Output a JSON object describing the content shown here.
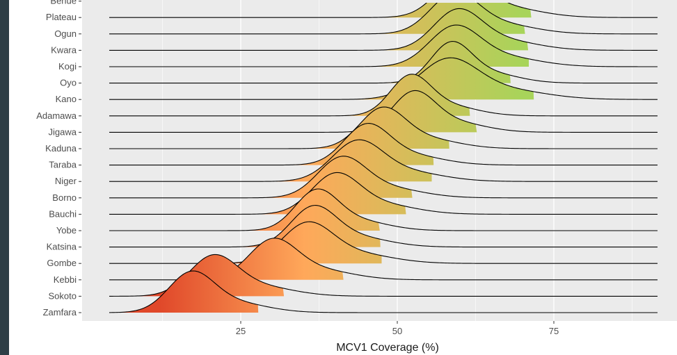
{
  "chart_data": {
    "type": "ridgeline",
    "title": "",
    "xlabel": "MCV1 Coverage (%)",
    "ylabel": "",
    "xlim": [
      4,
      95
    ],
    "x_ticks": [
      25,
      50,
      75
    ],
    "grid": true,
    "legend": "none",
    "colors": {
      "panel_bg": "#ebebeb",
      "grid": "#ffffff",
      "outer_bg": "#2e3e46",
      "low": "#e0482a",
      "mid": "#ffa85a",
      "high": "#a8d45a",
      "line": "#000000"
    },
    "series": [
      {
        "name": "Zamfara",
        "mode": 17,
        "spread": 3.6
      },
      {
        "name": "Sokoto",
        "mode": 20.5,
        "spread": 3.8
      },
      {
        "name": "Kebbi",
        "mode": 30,
        "spread": 3.8
      },
      {
        "name": "Gombe",
        "mode": 35.5,
        "spread": 4.0
      },
      {
        "name": "Katsina",
        "mode": 36.5,
        "spread": 3.6
      },
      {
        "name": "Yobe",
        "mode": 37,
        "spread": 3.4
      },
      {
        "name": "Bauchi",
        "mode": 40,
        "spread": 3.8
      },
      {
        "name": "Borno",
        "mode": 41,
        "spread": 3.8
      },
      {
        "name": "Niger",
        "mode": 43.5,
        "spread": 4.0
      },
      {
        "name": "Taraba",
        "mode": 45,
        "spread": 3.6
      },
      {
        "name": "Kaduna",
        "mode": 47.5,
        "spread": 3.6
      },
      {
        "name": "Jigawa",
        "mode": 52.5,
        "spread": 3.4
      },
      {
        "name": "Adamawa",
        "mode": 52,
        "spread": 3.2
      },
      {
        "name": "Kano",
        "mode": 58,
        "spread": 4.6
      },
      {
        "name": "Oyo",
        "mode": 58.5,
        "spread": 3.2
      },
      {
        "name": "Kogi",
        "mode": 59,
        "spread": 4.0
      },
      {
        "name": "Kwara",
        "mode": 59.5,
        "spread": 3.8
      },
      {
        "name": "Ogun",
        "mode": 59,
        "spread": 3.8
      },
      {
        "name": "Plateau",
        "mode": 60,
        "spread": 3.8
      },
      {
        "name": "Benue",
        "mode": 65.5,
        "spread": 3.6
      }
    ]
  }
}
